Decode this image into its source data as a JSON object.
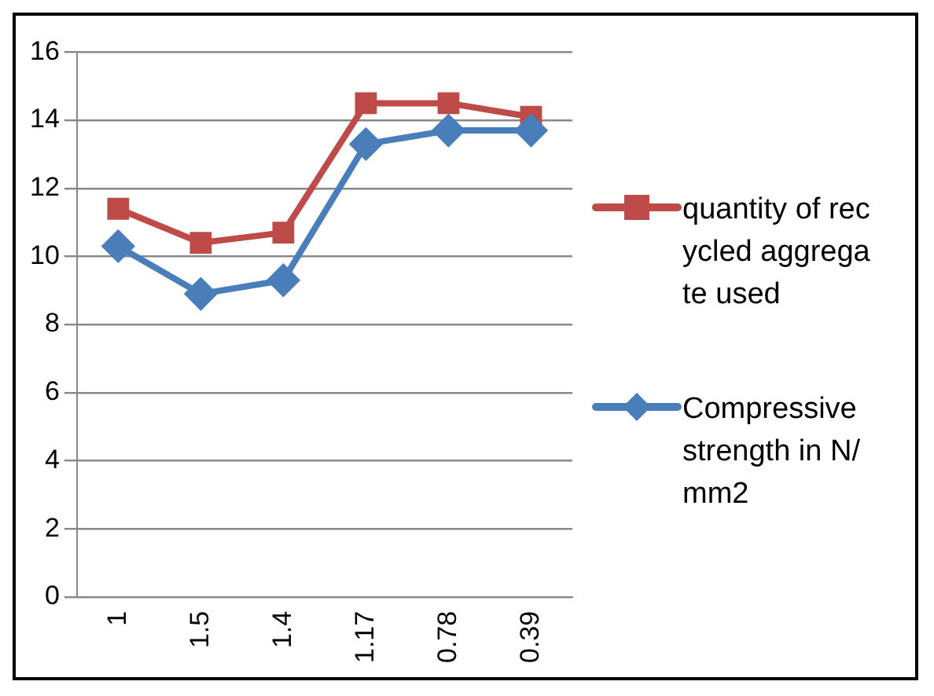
{
  "chart_data": {
    "type": "line",
    "categories": [
      "1",
      "1.5",
      "1.4",
      "1.17",
      "0.78",
      "0.39"
    ],
    "series": [
      {
        "name": "Compressive strength in N/mm2",
        "color": "#4a7ebb",
        "marker": "diamond",
        "values": [
          10.3,
          8.9,
          9.3,
          13.3,
          13.7,
          13.7
        ]
      },
      {
        "name": "quantity of recycled aggregate used",
        "color": "#be4b48",
        "marker": "square",
        "values": [
          11.4,
          10.4,
          10.7,
          14.5,
          14.5,
          14.1
        ]
      }
    ],
    "ylim": [
      0,
      16
    ],
    "yticks": [
      0,
      2,
      4,
      6,
      8,
      10,
      12,
      14,
      16
    ],
    "grid": "y",
    "legend": "right"
  }
}
